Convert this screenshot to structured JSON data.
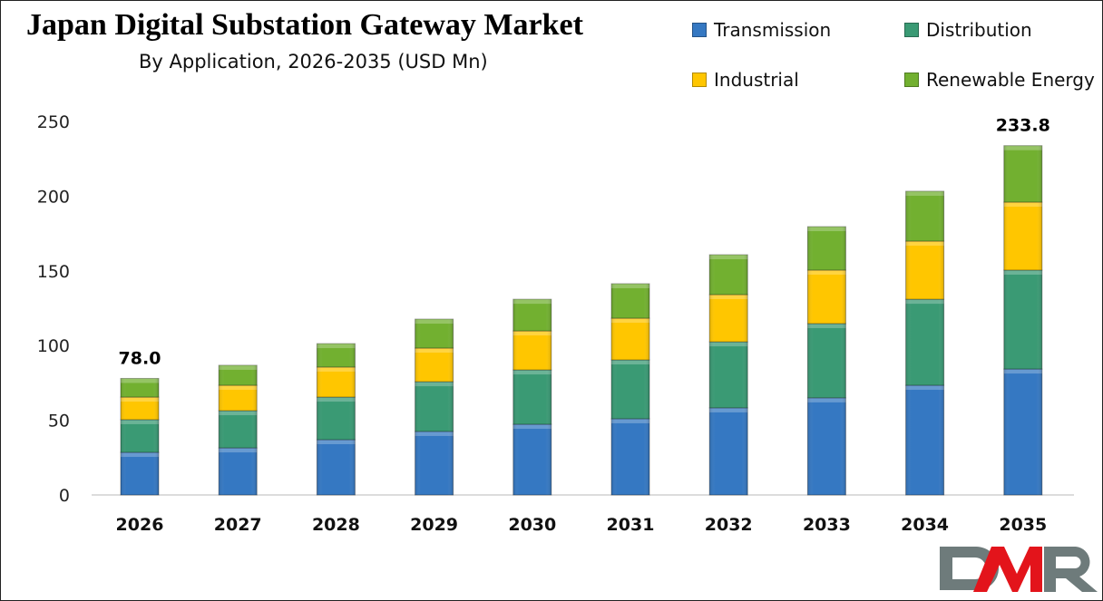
{
  "chart_data": {
    "type": "bar",
    "stacked": true,
    "title": "Japan Digital Substation Gateway Market",
    "subtitle": "By Application, 2026-2035 (USD Mn)",
    "categories": [
      "2026",
      "2027",
      "2028",
      "2029",
      "2030",
      "2031",
      "2032",
      "2033",
      "2034",
      "2035"
    ],
    "series": [
      {
        "name": "Transmission",
        "color": "#3578c2",
        "values": [
          28.5,
          31.5,
          37.0,
          42.5,
          47.3,
          51.0,
          58.3,
          65.0,
          73.4,
          84.3
        ]
      },
      {
        "name": "Distribution",
        "color": "#3a9a74",
        "values": [
          21.9,
          24.9,
          28.5,
          33.3,
          36.4,
          39.4,
          44.2,
          49.7,
          57.6,
          66.2
        ]
      },
      {
        "name": "Industrial",
        "color": "#ffc600",
        "values": [
          15.1,
          17.0,
          20.1,
          22.5,
          26.1,
          27.9,
          31.6,
          35.8,
          38.9,
          45.5
        ]
      },
      {
        "name": "Renewable Energy",
        "color": "#72b030",
        "values": [
          12.5,
          13.4,
          15.7,
          19.4,
          21.2,
          23.1,
          26.7,
          29.1,
          33.4,
          37.8
        ]
      }
    ],
    "data_labels": [
      {
        "category": "2026",
        "text": "78.0"
      },
      {
        "category": "2035",
        "text": "233.8"
      }
    ],
    "ylim": [
      0,
      250
    ],
    "yticks": [
      "0",
      "50",
      "100",
      "150",
      "200",
      "250"
    ],
    "xlabel": "",
    "ylabel": "",
    "grid": false,
    "legend": "top-right"
  },
  "logo": {
    "text": "DMR",
    "colors": {
      "D": "#6e7b7b",
      "M": "#e3141b",
      "R": "#6e7b7b"
    }
  }
}
